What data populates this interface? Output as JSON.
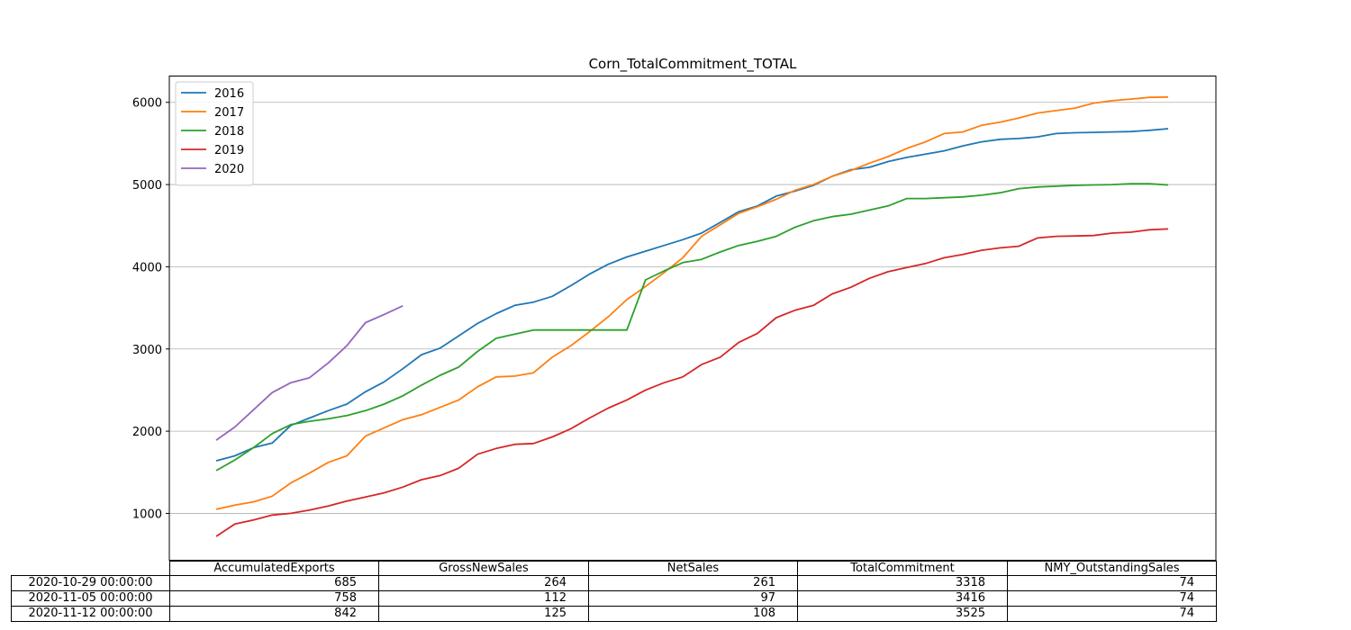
{
  "chart_data": {
    "type": "line",
    "title": "Corn_TotalCommitment_TOTAL",
    "xlabel": "",
    "ylabel": "",
    "ylim": [
      430,
      6320
    ],
    "yticks": [
      1000,
      2000,
      3000,
      4000,
      5000,
      6000
    ],
    "grid": "y",
    "legend_position": "top-left",
    "series": [
      {
        "name": "2016",
        "color": "#1f77b4",
        "values": [
          1640,
          1700,
          1800,
          1855,
          2070,
          2160,
          2250,
          2330,
          2480,
          2600,
          2760,
          2930,
          3010,
          3160,
          3310,
          3430,
          3530,
          3570,
          3640,
          3770,
          3910,
          4030,
          4120,
          4190,
          4260,
          4330,
          4410,
          4540,
          4670,
          4740,
          4860,
          4920,
          4990,
          5100,
          5180,
          5210,
          5280,
          5330,
          5370,
          5410,
          5470,
          5520,
          5550,
          5560,
          5580,
          5620,
          5630,
          5635,
          5640,
          5645,
          5660,
          5680
        ]
      },
      {
        "name": "2017",
        "color": "#ff7f0e",
        "values": [
          1050,
          1100,
          1140,
          1210,
          1370,
          1490,
          1620,
          1700,
          1940,
          2040,
          2140,
          2200,
          2290,
          2380,
          2540,
          2660,
          2670,
          2710,
          2900,
          3040,
          3210,
          3390,
          3600,
          3760,
          3930,
          4110,
          4370,
          4510,
          4650,
          4730,
          4820,
          4930,
          5000,
          5100,
          5170,
          5260,
          5340,
          5440,
          5520,
          5620,
          5640,
          5720,
          5760,
          5810,
          5870,
          5900,
          5930,
          5990,
          6020,
          6040,
          6060,
          6065
        ]
      },
      {
        "name": "2018",
        "color": "#2ca02c",
        "values": [
          1520,
          1650,
          1800,
          1970,
          2080,
          2120,
          2150,
          2190,
          2250,
          2330,
          2430,
          2560,
          2680,
          2780,
          2970,
          3130,
          3180,
          3230,
          3230,
          3230,
          3230,
          3230,
          3230,
          3840,
          3950,
          4050,
          4090,
          4180,
          4260,
          4310,
          4370,
          4480,
          4560,
          4610,
          4640,
          4690,
          4740,
          4830,
          4830,
          4840,
          4850,
          4870,
          4900,
          4950,
          4970,
          4980,
          4990,
          4995,
          5000,
          5010,
          5010,
          4995
        ]
      },
      {
        "name": "2019",
        "color": "#d62728",
        "values": [
          720,
          870,
          920,
          980,
          1000,
          1040,
          1090,
          1150,
          1200,
          1250,
          1320,
          1410,
          1460,
          1550,
          1720,
          1790,
          1840,
          1850,
          1930,
          2030,
          2160,
          2280,
          2380,
          2500,
          2590,
          2660,
          2810,
          2900,
          3080,
          3190,
          3380,
          3470,
          3530,
          3670,
          3750,
          3860,
          3940,
          3990,
          4040,
          4110,
          4150,
          4200,
          4230,
          4250,
          4350,
          4370,
          4375,
          4380,
          4410,
          4420,
          4450,
          4460
        ]
      },
      {
        "name": "2020",
        "color": "#9467bd",
        "values": [
          1890,
          2050,
          2260,
          2470,
          2590,
          2650,
          2830,
          3040,
          3320,
          3420,
          3525
        ]
      }
    ]
  },
  "table": {
    "columns": [
      "AccumulatedExports",
      "GrossNewSales",
      "NetSales",
      "TotalCommitment",
      "NMY_OutstandingSales"
    ],
    "rows": [
      {
        "label": "2020-10-29 00:00:00",
        "cells": [
          "685",
          "264",
          "261",
          "3318",
          "74"
        ]
      },
      {
        "label": "2020-11-05 00:00:00",
        "cells": [
          "758",
          "112",
          "97",
          "3416",
          "74"
        ]
      },
      {
        "label": "2020-11-12 00:00:00",
        "cells": [
          "842",
          "125",
          "108",
          "3525",
          "74"
        ]
      }
    ]
  }
}
